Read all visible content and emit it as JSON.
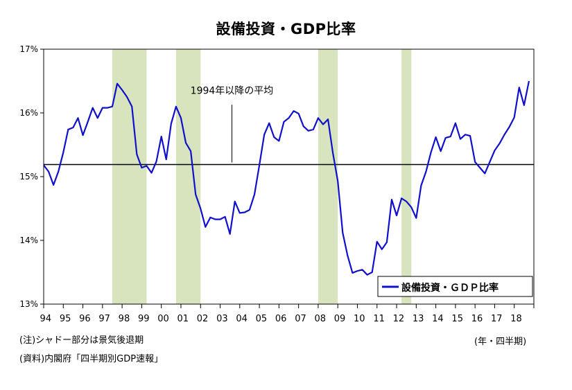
{
  "title": "設備投資・GDP比率",
  "unit_label": "(年・四半期)",
  "notes": {
    "note": "(注)シャドー部分は景気後退期",
    "source": "(資料)内閣府「四半期別GDP速報」"
  },
  "colors": {
    "line": "#1010cc",
    "shade": "#d7e4bd",
    "average": "#000000"
  },
  "chart_data": {
    "type": "line",
    "title": "設備投資・GDP比率",
    "x_tick_labels": [
      "94",
      "95",
      "96",
      "97",
      "98",
      "99",
      "00",
      "01",
      "02",
      "03",
      "04",
      "05",
      "06",
      "07",
      "08",
      "09",
      "10",
      "11",
      "12",
      "13",
      "14",
      "15",
      "16",
      "17",
      "18"
    ],
    "y_ticks": [
      "13%",
      "14%",
      "15%",
      "16%",
      "17%"
    ],
    "ylim": [
      13,
      17
    ],
    "x_start": 1994.0,
    "x_step": 0.25,
    "legend": "設備投資・ＧＤＰ比率",
    "legend_position": "bottom-right",
    "average_label": "1994年以降の平均",
    "average_value": 15.19,
    "recessions": [
      {
        "start": 1997.5,
        "end": 1999.25
      },
      {
        "start": 2000.75,
        "end": 2002.0
      },
      {
        "start": 2008.0,
        "end": 2009.0
      },
      {
        "start": 2012.25,
        "end": 2012.75
      }
    ],
    "series": [
      {
        "name": "設備投資・ＧＤＰ比率",
        "values": [
          15.18,
          15.08,
          14.87,
          15.08,
          15.38,
          15.74,
          15.77,
          15.92,
          15.65,
          15.86,
          16.08,
          15.92,
          16.08,
          16.08,
          16.1,
          16.46,
          16.36,
          16.25,
          16.1,
          15.35,
          15.14,
          15.17,
          15.06,
          15.24,
          15.63,
          15.27,
          15.83,
          16.1,
          15.92,
          15.53,
          15.4,
          14.72,
          14.5,
          14.21,
          14.36,
          14.33,
          14.33,
          14.37,
          14.1,
          14.61,
          14.43,
          14.44,
          14.48,
          14.72,
          15.18,
          15.66,
          15.84,
          15.62,
          15.56,
          15.86,
          15.92,
          16.03,
          15.99,
          15.79,
          15.72,
          15.74,
          15.92,
          15.82,
          15.9,
          15.37,
          14.93,
          14.12,
          13.76,
          13.49,
          13.52,
          13.54,
          13.46,
          13.5,
          13.98,
          13.86,
          13.97,
          14.64,
          14.39,
          14.66,
          14.61,
          14.52,
          14.35,
          14.86,
          15.08,
          15.38,
          15.62,
          15.4,
          15.61,
          15.63,
          15.84,
          15.59,
          15.66,
          15.64,
          15.23,
          15.14,
          15.05,
          15.23,
          15.41,
          15.52,
          15.66,
          15.78,
          15.93,
          16.4,
          16.12,
          16.5
        ]
      }
    ]
  }
}
